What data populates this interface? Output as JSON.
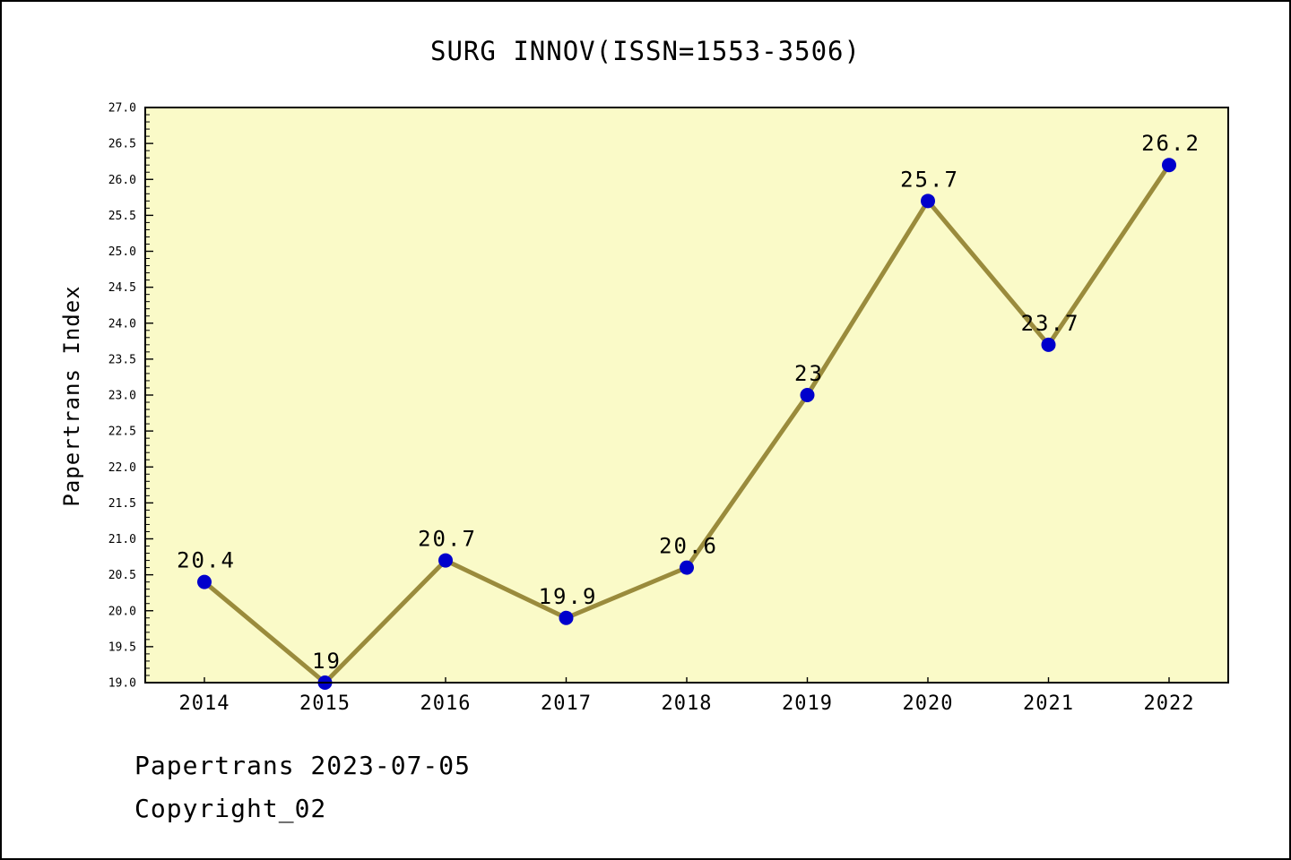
{
  "chart_data": {
    "type": "line",
    "title": "SURG INNOV(ISSN=1553-3506)",
    "xlabel": "",
    "ylabel": "Papertrans Index",
    "categories": [
      "2014",
      "2015",
      "2016",
      "2017",
      "2018",
      "2019",
      "2020",
      "2021",
      "2022"
    ],
    "values": [
      20.4,
      19,
      20.7,
      19.9,
      20.6,
      23,
      25.7,
      23.7,
      26.2
    ],
    "point_labels": [
      "20.4",
      "19",
      "20.7",
      "19.9",
      "20.6",
      "23",
      "25.7",
      "23.7",
      "26.2"
    ],
    "ylim": [
      19.0,
      27.0
    ],
    "y_major_step": 0.5,
    "y_minor_step": 0.1,
    "grid": false,
    "legend": "none",
    "colors": {
      "plot_background": "#FAFAC8",
      "line": "#9A8B3C",
      "marker": "#0000CC",
      "axis": "#000000",
      "text": "#000000"
    }
  },
  "footer": {
    "line1": "Papertrans 2023-07-05",
    "line2": "Copyright_02"
  }
}
